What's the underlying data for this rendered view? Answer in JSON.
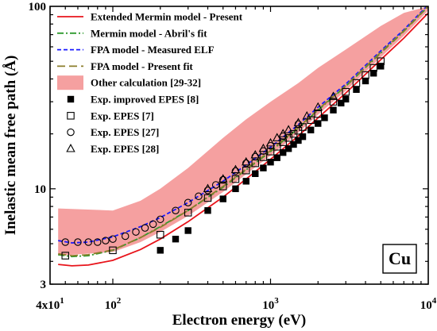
{
  "chart_data": {
    "type": "line",
    "xscale": "log",
    "yscale": "log",
    "xlim": [
      40,
      10000
    ],
    "ylim": [
      3,
      100
    ],
    "xlabel": "Electron energy (eV)",
    "ylabel": "Inelastic mean free path (Å)",
    "element_label": "Cu",
    "x_ticks": [
      {
        "value": 40,
        "base": "4x10",
        "exp": "1"
      },
      {
        "value": 100,
        "base": "10",
        "exp": "2"
      },
      {
        "value": 1000,
        "base": "10",
        "exp": "3"
      },
      {
        "value": 10000,
        "base": "10",
        "exp": "4"
      }
    ],
    "y_ticks": [
      {
        "value": 3,
        "label": "3"
      },
      {
        "value": 10,
        "label": "10"
      },
      {
        "value": 100,
        "label": "100"
      }
    ],
    "lines": [
      {
        "name": "Extended Mermin model - Present",
        "color": "#e8141b",
        "dash": "solid",
        "x": [
          45,
          55,
          70,
          100,
          150,
          200,
          300,
          500,
          700,
          1000,
          1500,
          2000,
          3000,
          5000,
          7000,
          10000
        ],
        "y": [
          3.85,
          3.78,
          3.82,
          4.05,
          4.65,
          5.3,
          6.6,
          9.0,
          11.3,
          14.5,
          19.5,
          24.5,
          33.5,
          51.0,
          67.0,
          92.0
        ]
      },
      {
        "name": "Mermin model - Abril's fit",
        "color": "#2e9a2e",
        "dash": "dashdot",
        "x": [
          45,
          55,
          70,
          100,
          150,
          200,
          300,
          500,
          700,
          1000,
          1500,
          2000,
          3000,
          5000,
          7000,
          10000
        ],
        "y": [
          4.35,
          4.25,
          4.3,
          4.6,
          5.4,
          6.2,
          7.6,
          10.2,
          12.7,
          16.0,
          21.5,
          27.0,
          36.5,
          55.5,
          73.0,
          100.0
        ]
      },
      {
        "name": "FPA model - Measured ELF",
        "color": "#1a1aff",
        "dash": "dashed",
        "x": [
          45,
          55,
          70,
          100,
          150,
          200,
          300,
          500,
          700,
          1000,
          1500,
          2000,
          3000,
          5000,
          7000,
          10000
        ],
        "y": [
          5.2,
          5.05,
          5.1,
          5.45,
          6.2,
          6.95,
          8.4,
          11.0,
          13.5,
          16.9,
          22.5,
          28.0,
          37.5,
          57.0,
          74.5,
          102.0
        ]
      },
      {
        "name": "FPA model - Present fit",
        "color": "#8b7d2a",
        "dash": "longdash",
        "x": [
          45,
          55,
          70,
          100,
          150,
          200,
          300,
          500,
          700,
          1000,
          1500,
          2000,
          3000,
          5000,
          7000,
          10000
        ],
        "y": [
          4.4,
          4.3,
          4.35,
          4.62,
          5.4,
          6.15,
          7.6,
          10.3,
          12.8,
          16.2,
          21.7,
          27.2,
          36.8,
          56.0,
          73.5,
          100.5
        ]
      }
    ],
    "band": {
      "name": "Other calculation [29-32]",
      "color": "#f5a0a0",
      "x": [
        45,
        100,
        150,
        200,
        300,
        500,
        700,
        1000,
        1500,
        2000,
        3000,
        5000,
        7000,
        10000
      ],
      "upper": [
        7.8,
        7.6,
        8.6,
        10.0,
        13.0,
        19.0,
        24.0,
        30.0,
        38.0,
        46.0,
        58.0,
        78.0,
        92.0,
        100.0
      ],
      "lower": [
        4.3,
        4.5,
        5.1,
        5.8,
        7.1,
        9.6,
        12.0,
        15.2,
        20.3,
        25.5,
        34.5,
        52.5,
        69.0,
        95.0
      ]
    },
    "scatter": [
      {
        "name": "Exp. improved EPES [8]",
        "marker": "filled-square",
        "x": [
          200,
          250,
          300,
          400,
          500,
          600,
          700,
          800,
          900,
          1000,
          1100,
          1200,
          1300,
          1400,
          1500,
          1600,
          1800,
          2000,
          2200,
          2500,
          2800,
          3000,
          3500,
          4000,
          4500,
          5000
        ],
        "y": [
          4.6,
          5.3,
          5.9,
          7.6,
          8.8,
          10.0,
          11.0,
          12.1,
          13.0,
          14.0,
          14.8,
          15.8,
          16.6,
          17.5,
          18.4,
          19.3,
          21.0,
          22.8,
          24.5,
          27.0,
          29.5,
          31.0,
          35.0,
          39.0,
          43.0,
          47.0
        ]
      },
      {
        "name": "Exp. EPES [7]",
        "marker": "open-square",
        "x": [
          50,
          100,
          200,
          300,
          400,
          500,
          600,
          700,
          800,
          900,
          1000,
          1100,
          1200,
          1300,
          1400,
          1500,
          1600,
          1800,
          2000,
          2500,
          3000,
          3500,
          4000,
          4500,
          5000
        ],
        "y": [
          4.3,
          4.6,
          5.6,
          7.4,
          8.9,
          10.3,
          11.3,
          12.6,
          13.8,
          14.9,
          16.0,
          17.0,
          18.0,
          19.0,
          20.0,
          20.8,
          21.8,
          23.8,
          25.7,
          30.0,
          34.0,
          38.0,
          42.0,
          46.0,
          50.0
        ]
      },
      {
        "name": "Exp. EPES [27]",
        "marker": "open-circle",
        "x": [
          50,
          60,
          70,
          80,
          90,
          100,
          120,
          140,
          160,
          180,
          200,
          250,
          300,
          350,
          400,
          450,
          500,
          600,
          700,
          800,
          900,
          1000,
          1200,
          1500
        ],
        "y": [
          5.1,
          5.1,
          5.1,
          5.1,
          5.2,
          5.3,
          5.5,
          5.8,
          6.1,
          6.4,
          6.8,
          7.6,
          8.4,
          9.1,
          9.8,
          10.5,
          11.2,
          12.5,
          13.8,
          15.0,
          16.1,
          17.2,
          19.4,
          22.6
        ]
      },
      {
        "name": "Exp. EPES [28]",
        "marker": "open-triangle",
        "x": [
          400,
          500,
          600,
          700,
          800,
          900,
          1000,
          1100,
          1200,
          1300,
          1500,
          1700,
          2000,
          2500
        ],
        "y": [
          10.0,
          11.3,
          12.7,
          14.0,
          15.3,
          16.6,
          17.8,
          19.0,
          20.0,
          21.0,
          23.0,
          25.0,
          28.0,
          32.0
        ]
      }
    ],
    "legend_position": "top-left",
    "grid": false
  }
}
